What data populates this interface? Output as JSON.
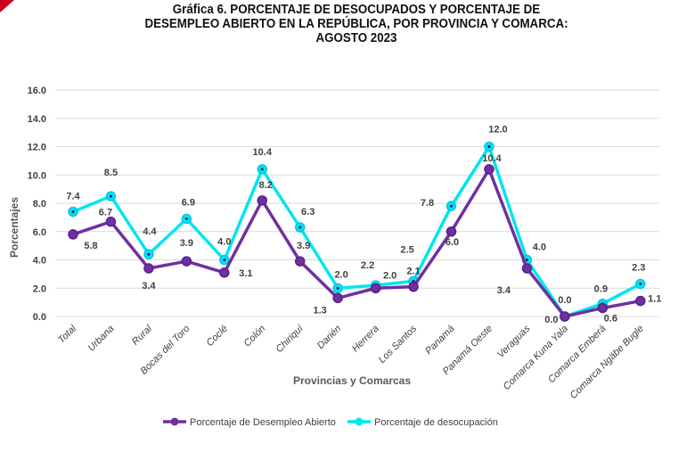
{
  "chart_data": {
    "type": "line",
    "title": "Gráfica 6.  PORCENTAJE DE DESOCUPADOS Y PORCENTAJE DE DESEMPLEO ABIERTO EN LA REPÚBLICA, POR PROVINCIA Y COMARCA: AGOSTO 2023",
    "xlabel": "Provincias y Comarcas",
    "ylabel": "Porcentajes",
    "ylim": [
      0,
      16
    ],
    "yticks": [
      "0.0",
      "2.0",
      "4.0",
      "6.0",
      "8.0",
      "10.0",
      "12.0",
      "14.0",
      "16.0"
    ],
    "grid": true,
    "legend_position": "bottom",
    "categories": [
      "Total",
      "Urbana",
      "Rural",
      "Bocas del Toro",
      "Coclé",
      "Colón",
      "Chiriquí",
      "Darién",
      "Herrera",
      "Los Santos",
      "Panamá",
      "Panamá Oeste",
      "Veraguas",
      "Comarca Kuna Yala",
      "Comarca Emberá",
      "Comarca Ngäbe Bugle"
    ],
    "series": [
      {
        "name": "Porcentaje de Desempleo Abierto",
        "color": "#7030a0",
        "values": [
          5.8,
          6.7,
          3.4,
          3.9,
          3.1,
          8.2,
          3.9,
          1.3,
          2.0,
          2.1,
          6.0,
          10.4,
          3.4,
          0.0,
          0.6,
          1.1
        ]
      },
      {
        "name": "Porcentaje de desocupación",
        "color": "#00e5f0",
        "values": [
          7.4,
          8.5,
          4.4,
          6.9,
          4.0,
          10.4,
          6.3,
          2.0,
          2.2,
          2.5,
          7.8,
          12.0,
          4.0,
          0.0,
          0.9,
          2.3
        ]
      }
    ]
  }
}
